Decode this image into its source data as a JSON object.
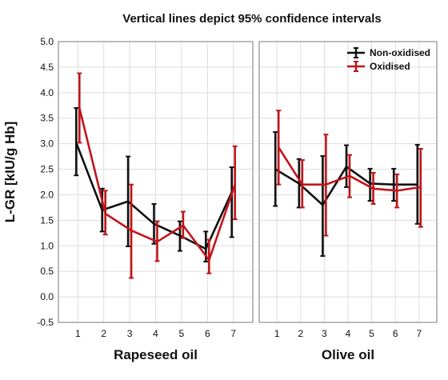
{
  "chart_data": {
    "type": "line",
    "title": "Vertical lines depict 95% confidence intervals",
    "ylabel": "L-GR [kIU/g Hb]",
    "ylim": [
      -0.5,
      5.0
    ],
    "yticks": [
      "-0.5",
      "0.0",
      "0.5",
      "1.0",
      "1.5",
      "2.0",
      "2.5",
      "3.0",
      "3.5",
      "4.0",
      "4.5",
      "5.0"
    ],
    "grid": true,
    "legend_position": "top-right of second panel",
    "series_colors": {
      "Non-oxidised": "#111111",
      "Oxidised": "#c0161b"
    },
    "panels": [
      {
        "xlabel": "Rapeseed oil",
        "x": [
          "1",
          "2",
          "3",
          "4",
          "5",
          "6",
          "7"
        ],
        "series": [
          {
            "name": "Non-oxidised",
            "values": [
              3.02,
              1.7,
              1.87,
              1.43,
              1.2,
              0.94,
              2.05
            ],
            "low": [
              2.38,
              1.28,
              0.99,
              1.04,
              0.9,
              0.69,
              1.17
            ],
            "high": [
              3.7,
              2.12,
              2.75,
              1.82,
              1.48,
              1.28,
              2.54
            ]
          },
          {
            "name": "Oxidised",
            "values": [
              3.7,
              1.63,
              1.3,
              1.08,
              1.4,
              0.72,
              2.2
            ],
            "low": [
              3.02,
              1.22,
              0.37,
              0.7,
              1.15,
              0.46,
              1.52
            ],
            "high": [
              4.38,
              2.08,
              2.2,
              1.48,
              1.67,
              1.12,
              2.95
            ]
          }
        ]
      },
      {
        "xlabel": "Olive oil",
        "x": [
          "1",
          "2",
          "3",
          "4",
          "5",
          "6",
          "7"
        ],
        "series": [
          {
            "name": "Non-oxidised",
            "values": [
              2.5,
              2.22,
              1.8,
              2.55,
              2.22,
              2.2,
              2.2
            ],
            "low": [
              1.78,
              1.75,
              0.8,
              2.15,
              1.88,
              1.88,
              1.43
            ],
            "high": [
              3.23,
              2.7,
              2.76,
              2.97,
              2.51,
              2.51,
              2.98
            ]
          },
          {
            "name": "Oxidised",
            "values": [
              2.93,
              2.2,
              2.2,
              2.37,
              2.12,
              2.08,
              2.15
            ],
            "low": [
              2.2,
              1.75,
              1.2,
              1.95,
              1.82,
              1.75,
              1.37
            ],
            "high": [
              3.65,
              2.68,
              3.18,
              2.78,
              2.43,
              2.4,
              2.9
            ]
          }
        ]
      }
    ]
  }
}
